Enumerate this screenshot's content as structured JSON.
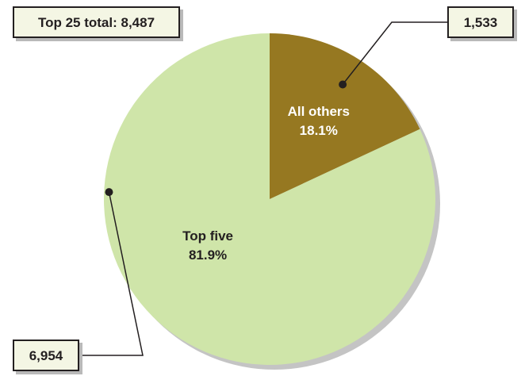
{
  "chart_data": {
    "type": "pie",
    "total_label": "Top 25 total: 8,487",
    "slices": [
      {
        "label": "All others",
        "percent_label": "18.1%",
        "value": 1533,
        "value_label": "1,533",
        "color": "#967821",
        "text_color": "#ffffff"
      },
      {
        "label": "Top five",
        "percent_label": "81.9%",
        "value": 6954,
        "value_label": "6,954",
        "color": "#cfe5a9",
        "text_color": "#231f20"
      }
    ]
  }
}
